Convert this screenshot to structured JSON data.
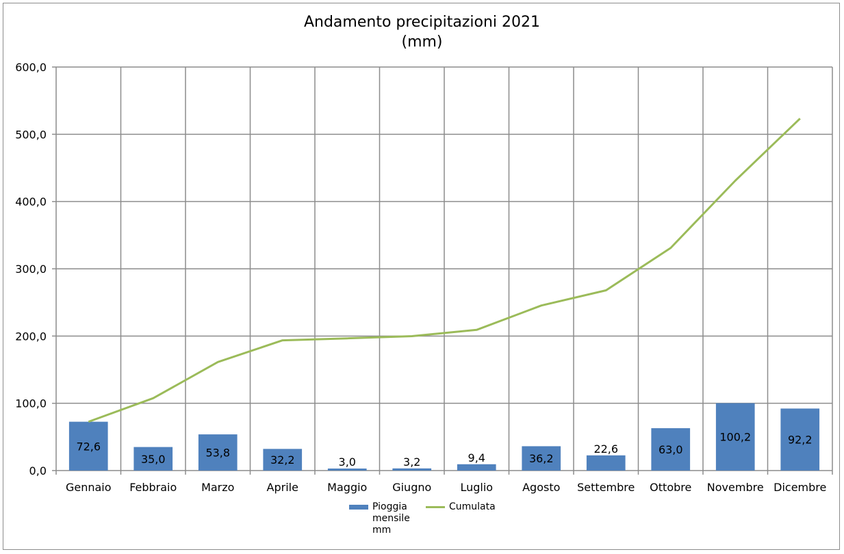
{
  "chart_data": {
    "type": "bar",
    "title": "Andamento precipitazioni 2021",
    "subtitle": "(mm)",
    "categories": [
      "Gennaio",
      "Febbraio",
      "Marzo",
      "Aprile",
      "Maggio",
      "Giugno",
      "Luglio",
      "Agosto",
      "Settembre",
      "Ottobre",
      "Novembre",
      "Dicembre"
    ],
    "series": [
      {
        "name": "Pioggia mensile mm",
        "kind": "bar",
        "color": "#4f81bd",
        "values": [
          72.6,
          35.0,
          53.8,
          32.2,
          3.0,
          3.2,
          9.4,
          36.2,
          22.6,
          63.0,
          100.2,
          92.2
        ],
        "labels": [
          "72,6",
          "35,0",
          "53,8",
          "32,2",
          "3,0",
          "3,2",
          "9,4",
          "36,2",
          "22,6",
          "63,0",
          "100,2",
          "92,2"
        ]
      },
      {
        "name": "Cumulata",
        "kind": "line",
        "color": "#9bbb59",
        "values": [
          72.6,
          107.6,
          161.4,
          193.6,
          196.6,
          199.8,
          209.2,
          245.4,
          268.0,
          331.0,
          431.2,
          523.4
        ]
      }
    ],
    "ylim": [
      0,
      600
    ],
    "yticks": [
      "0,0",
      "100,0",
      "200,0",
      "300,0",
      "400,0",
      "500,0",
      "600,0"
    ],
    "xlabel": "",
    "ylabel": "",
    "grid": true,
    "legend": "bottom"
  }
}
